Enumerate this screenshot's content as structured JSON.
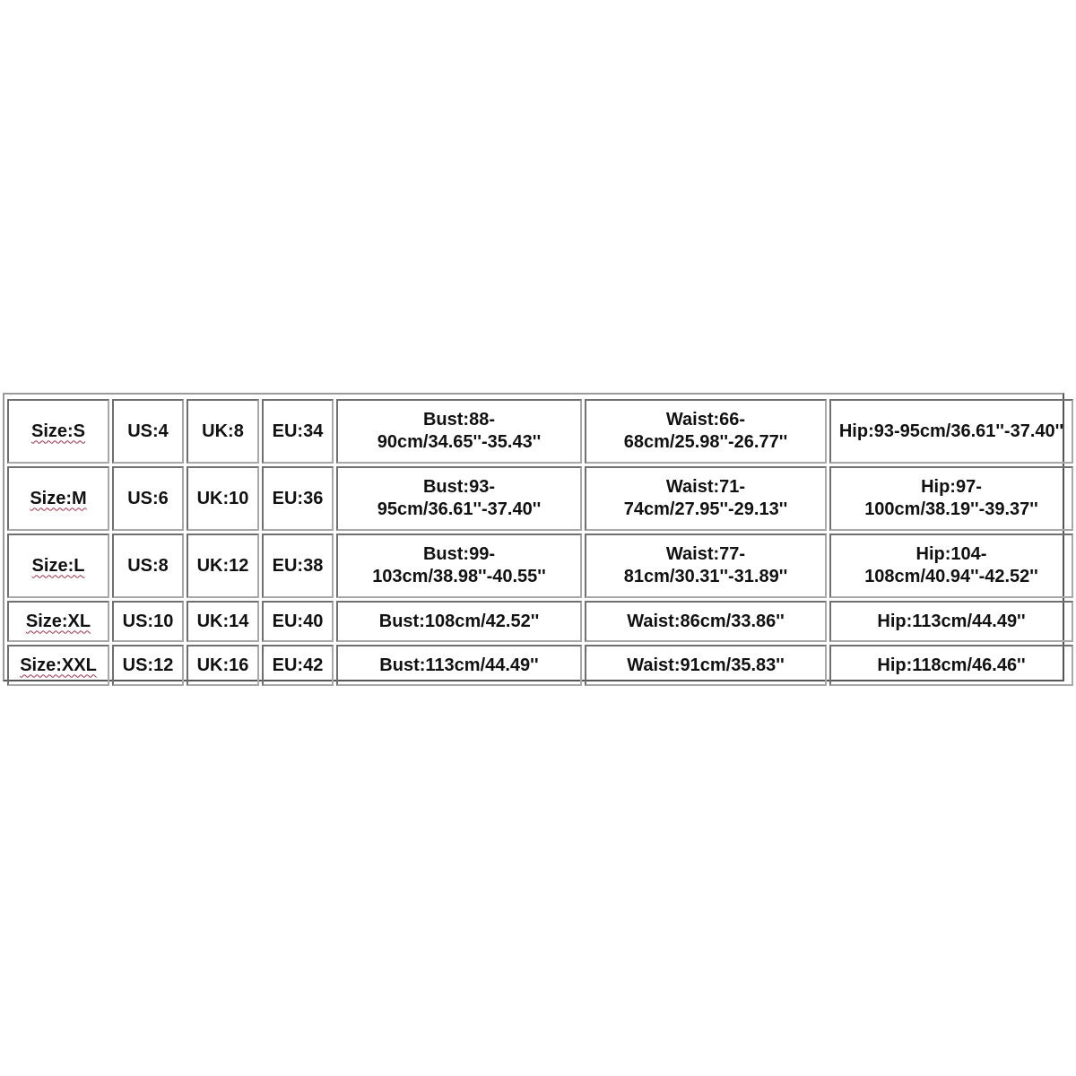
{
  "size_chart": {
    "rows": [
      {
        "size": "Size:S",
        "us": "US:4",
        "uk": "UK:8",
        "eu": "EU:34",
        "bust": "Bust:88-90cm/34.65''-35.43''",
        "waist": "Waist:66-68cm/25.98''-26.77''",
        "hip": "Hip:93-95cm/36.61''-37.40''"
      },
      {
        "size": "Size:M",
        "us": "US:6",
        "uk": "UK:10",
        "eu": "EU:36",
        "bust": "Bust:93-95cm/36.61''-37.40''",
        "waist": "Waist:71-74cm/27.95''-29.13''",
        "hip": "Hip:97-100cm/38.19''-39.37''"
      },
      {
        "size": "Size:L",
        "us": "US:8",
        "uk": "UK:12",
        "eu": "EU:38",
        "bust": "Bust:99-103cm/38.98''-40.55''",
        "waist": "Waist:77-81cm/30.31''-31.89''",
        "hip": "Hip:104-108cm/40.94''-42.52''"
      },
      {
        "size": "Size:XL",
        "us": "US:10",
        "uk": "UK:14",
        "eu": "EU:40",
        "bust": "Bust:108cm/42.52''",
        "waist": "Waist:86cm/33.86''",
        "hip": "Hip:113cm/44.49''"
      },
      {
        "size": "Size:XXL",
        "us": "US:12",
        "uk": "UK:16",
        "eu": "EU:42",
        "bust": "Bust:113cm/44.49''",
        "waist": "Waist:91cm/35.83''",
        "hip": "Hip:118cm/46.46''"
      }
    ]
  }
}
